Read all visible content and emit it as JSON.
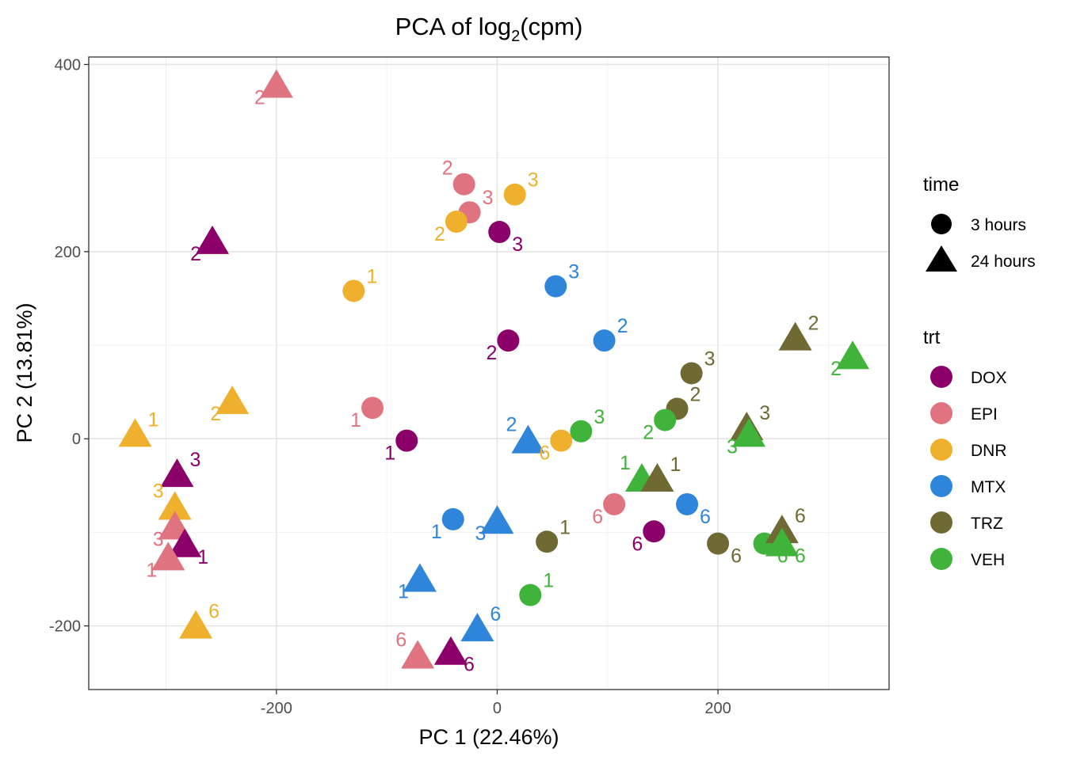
{
  "chart_data": {
    "type": "scatter",
    "title": "PCA of log",
    "title_sub": "2",
    "title_rest": "(cpm)",
    "xlabel": "PC 1 (22.46%)",
    "ylabel": "PC 2 (13.81%)",
    "xlim": [
      -370,
      355
    ],
    "ylim": [
      -268,
      408
    ],
    "xticks": [
      -200,
      0,
      200
    ],
    "yticks": [
      -200,
      0,
      200,
      400
    ],
    "xtick_labels": [
      "-200",
      "0",
      "200"
    ],
    "ytick_labels": [
      "-200",
      "0",
      "200",
      "400"
    ],
    "grid": true,
    "legend_position": "right",
    "colors": {
      "DOX": "#8b0069",
      "EPI": "#e07380",
      "DNR": "#efb12d",
      "MTX": "#2e85d9",
      "TRZ": "#6f6a33",
      "VEH": "#3fb33a"
    },
    "legend_time": {
      "title": "time",
      "items": [
        {
          "shape": "circle",
          "label": "3 hours"
        },
        {
          "shape": "triangle",
          "label": "24 hours"
        }
      ]
    },
    "legend_trt": {
      "title": "trt",
      "items": [
        "DOX",
        "EPI",
        "DNR",
        "MTX",
        "TRZ",
        "VEH"
      ]
    },
    "points": [
      {
        "trt": "EPI",
        "time": "24 hours",
        "x": -200,
        "y": 378,
        "label": "2",
        "pos": "bl"
      },
      {
        "trt": "EPI",
        "time": "3 hours",
        "x": -30,
        "y": 272,
        "label": "2",
        "pos": "tl"
      },
      {
        "trt": "DNR",
        "time": "3 hours",
        "x": 16,
        "y": 261,
        "label": "3",
        "pos": "tr"
      },
      {
        "trt": "EPI",
        "time": "3 hours",
        "x": -25,
        "y": 242,
        "label": "3",
        "pos": "tr"
      },
      {
        "trt": "DNR",
        "time": "3 hours",
        "x": -37,
        "y": 232,
        "label": "2",
        "pos": "bl"
      },
      {
        "trt": "DOX",
        "time": "3 hours",
        "x": 2,
        "y": 221,
        "label": "3",
        "pos": "br"
      },
      {
        "trt": "DOX",
        "time": "24 hours",
        "x": -258,
        "y": 211,
        "label": "2",
        "pos": "bl"
      },
      {
        "trt": "MTX",
        "time": "3 hours",
        "x": 53,
        "y": 163,
        "label": "3",
        "pos": "tr"
      },
      {
        "trt": "DNR",
        "time": "3 hours",
        "x": -130,
        "y": 158,
        "label": "1",
        "pos": "tr"
      },
      {
        "trt": "MTX",
        "time": "3 hours",
        "x": 97,
        "y": 105,
        "label": "2",
        "pos": "tr"
      },
      {
        "trt": "DOX",
        "time": "3 hours",
        "x": 10,
        "y": 105,
        "label": "2",
        "pos": "bl"
      },
      {
        "trt": "TRZ",
        "time": "24 hours",
        "x": 270,
        "y": 108,
        "label": "2",
        "pos": "tr"
      },
      {
        "trt": "VEH",
        "time": "24 hours",
        "x": 322,
        "y": 88,
        "label": "2",
        "pos": "bl"
      },
      {
        "trt": "TRZ",
        "time": "3 hours",
        "x": 176,
        "y": 70,
        "label": "3",
        "pos": "tr"
      },
      {
        "trt": "TRZ",
        "time": "3 hours",
        "x": 163,
        "y": 32,
        "label": "2",
        "pos": "tr"
      },
      {
        "trt": "VEH",
        "time": "3 hours",
        "x": 152,
        "y": 20,
        "label": "2",
        "pos": "bl"
      },
      {
        "trt": "EPI",
        "time": "3 hours",
        "x": -113,
        "y": 33,
        "label": "1",
        "pos": "bl"
      },
      {
        "trt": "DNR",
        "time": "24 hours",
        "x": -240,
        "y": 40,
        "label": "2",
        "pos": "bl"
      },
      {
        "trt": "TRZ",
        "time": "24 hours",
        "x": 226,
        "y": 12,
        "label": "3",
        "pos": "tr"
      },
      {
        "trt": "VEH",
        "time": "24 hours",
        "x": 228,
        "y": 5,
        "label": "3",
        "pos": "bl"
      },
      {
        "trt": "DNR",
        "time": "24 hours",
        "x": -328,
        "y": 5,
        "label": "1",
        "pos": "tr"
      },
      {
        "trt": "DOX",
        "time": "3 hours",
        "x": -82,
        "y": -2,
        "label": "1",
        "pos": "bl"
      },
      {
        "trt": "MTX",
        "time": "24 hours",
        "x": 28,
        "y": -2,
        "label": "2",
        "pos": "tl"
      },
      {
        "trt": "DNR",
        "time": "3 hours",
        "x": 58,
        "y": -2,
        "label": "6",
        "pos": "bl"
      },
      {
        "trt": "VEH",
        "time": "3 hours",
        "x": 76,
        "y": 8,
        "label": "3",
        "pos": "tr"
      },
      {
        "trt": "DOX",
        "time": "24 hours",
        "x": -290,
        "y": -38,
        "label": "3",
        "pos": "tr"
      },
      {
        "trt": "VEH",
        "time": "24 hours",
        "x": 131,
        "y": -43,
        "label": "1",
        "pos": "tl"
      },
      {
        "trt": "TRZ",
        "time": "24 hours",
        "x": 145,
        "y": -43,
        "label": "1",
        "pos": "tr"
      },
      {
        "trt": "DNR",
        "time": "24 hours",
        "x": -292,
        "y": -73,
        "label": "3",
        "pos": "tl"
      },
      {
        "trt": "EPI",
        "time": "3 hours",
        "x": 106,
        "y": -70,
        "label": "6",
        "pos": "bl"
      },
      {
        "trt": "MTX",
        "time": "3 hours",
        "x": 172,
        "y": -70,
        "label": "6",
        "pos": "br"
      },
      {
        "trt": "EPI",
        "time": "24 hours",
        "x": -292,
        "y": -94,
        "label": "3",
        "pos": "bl"
      },
      {
        "trt": "MTX",
        "time": "3 hours",
        "x": -40,
        "y": -86,
        "label": "1",
        "pos": "bl"
      },
      {
        "trt": "MTX",
        "time": "24 hours",
        "x": 0,
        "y": -88,
        "label": "3",
        "pos": "bl"
      },
      {
        "trt": "DOX",
        "time": "3 hours",
        "x": 142,
        "y": -99,
        "label": "6",
        "pos": "bl"
      },
      {
        "trt": "TRZ",
        "time": "3 hours",
        "x": 45,
        "y": -110,
        "label": "1",
        "pos": "tr"
      },
      {
        "trt": "TRZ",
        "time": "3 hours",
        "x": 200,
        "y": -112,
        "label": "6",
        "pos": "br"
      },
      {
        "trt": "VEH",
        "time": "3 hours",
        "x": 242,
        "y": -112,
        "label": "6",
        "pos": "br"
      },
      {
        "trt": "TRZ",
        "time": "24 hours",
        "x": 258,
        "y": -98,
        "label": "6",
        "pos": "tr"
      },
      {
        "trt": "VEH",
        "time": "24 hours",
        "x": 258,
        "y": -112,
        "label": "6",
        "pos": "br"
      },
      {
        "trt": "DOX",
        "time": "24 hours",
        "x": -283,
        "y": -113,
        "label": "1",
        "pos": "br"
      },
      {
        "trt": "EPI",
        "time": "24 hours",
        "x": -298,
        "y": -127,
        "label": "1",
        "pos": "bl"
      },
      {
        "trt": "MTX",
        "time": "24 hours",
        "x": -70,
        "y": -150,
        "label": "1",
        "pos": "bl"
      },
      {
        "trt": "VEH",
        "time": "3 hours",
        "x": 30,
        "y": -167,
        "label": "1",
        "pos": "tr"
      },
      {
        "trt": "DNR",
        "time": "24 hours",
        "x": -273,
        "y": -200,
        "label": "6",
        "pos": "tr"
      },
      {
        "trt": "MTX",
        "time": "24 hours",
        "x": -18,
        "y": -203,
        "label": "6",
        "pos": "tr"
      },
      {
        "trt": "DOX",
        "time": "24 hours",
        "x": -42,
        "y": -228,
        "label": "6",
        "pos": "br"
      },
      {
        "trt": "EPI",
        "time": "24 hours",
        "x": -72,
        "y": -232,
        "label": "6",
        "pos": "tl"
      }
    ]
  }
}
